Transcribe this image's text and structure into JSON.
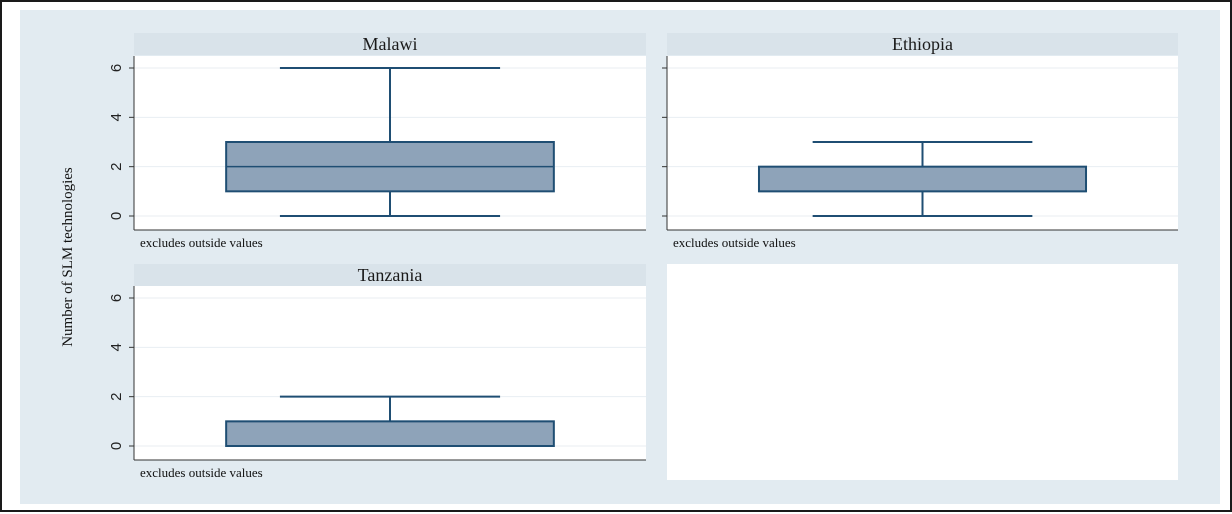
{
  "chart_data": {
    "type": "box",
    "ylabel": "Number of SLM technologies",
    "ylim": [
      0,
      6
    ],
    "yticks": [
      0,
      2,
      4,
      6
    ],
    "note": "excludes outside values",
    "colors": {
      "background": "#e2ebf1",
      "plot": "#ffffff",
      "strip": "#d9e3ea",
      "box_fill": "#8ea3b9",
      "box_stroke": "#1f4e73",
      "grid": "#e8eef2"
    },
    "panels": [
      {
        "title": "Malawi",
        "min": 0,
        "q1": 1,
        "median": 2,
        "q3": 3,
        "max": 6
      },
      {
        "title": "Ethiopia",
        "min": 0,
        "q1": 1,
        "median": 1,
        "q3": 2,
        "max": 3
      },
      {
        "title": "Tanzania",
        "min": 0,
        "q1": 0,
        "median": 1,
        "q3": 1,
        "max": 2
      }
    ]
  }
}
